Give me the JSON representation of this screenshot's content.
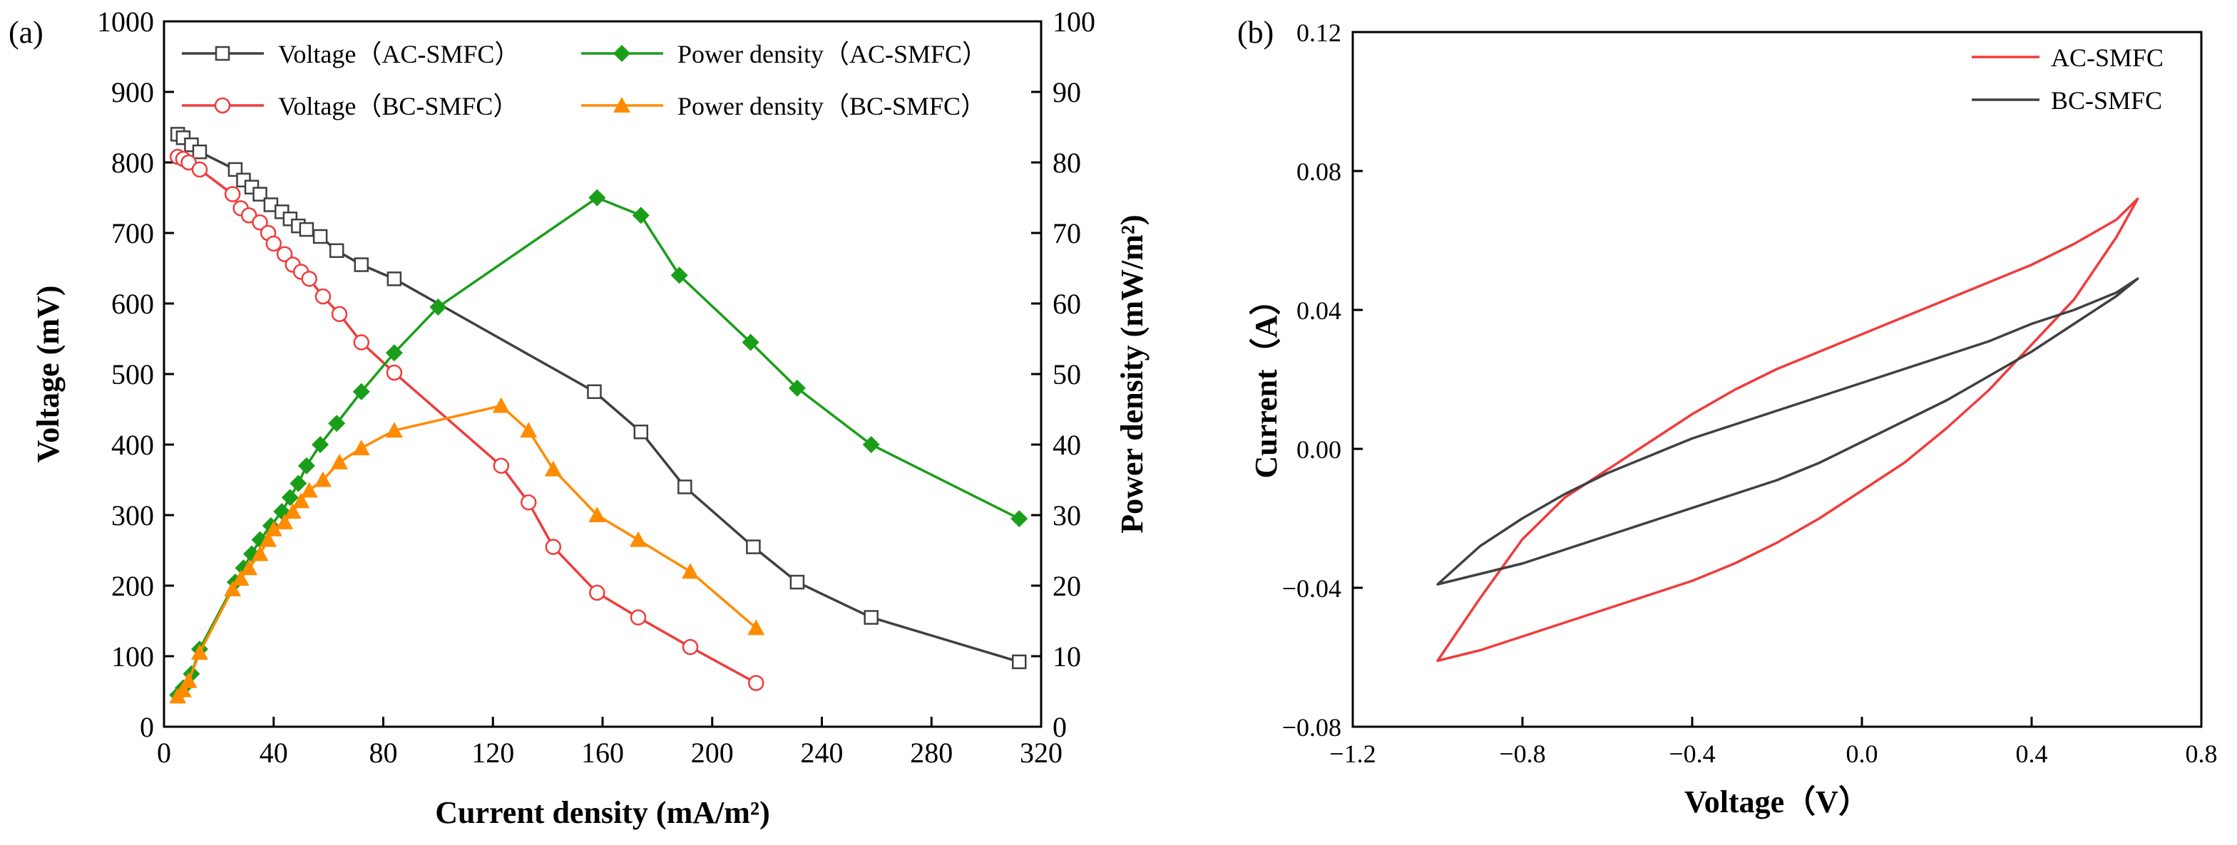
{
  "panel_labels": {
    "a": "(a)",
    "b": "(b)"
  },
  "chart_data": [
    {
      "type": "line",
      "panel": "a",
      "xlabel": "Current density (mA/m²)",
      "ylabel": "Voltage (mV)",
      "y2label": "Power density (mW/m²)",
      "xlim": [
        0,
        320
      ],
      "ylim": [
        0,
        1000
      ],
      "y2lim": [
        0,
        100
      ],
      "xticks": [
        "0",
        "40",
        "80",
        "120",
        "160",
        "200",
        "240",
        "280",
        "320"
      ],
      "yticks": [
        "0",
        "100",
        "200",
        "300",
        "400",
        "500",
        "600",
        "700",
        "800",
        "900",
        "1000"
      ],
      "y2ticks": [
        "0",
        "10",
        "20",
        "30",
        "40",
        "50",
        "60",
        "70",
        "80",
        "90",
        "100"
      ],
      "legend_position": "top",
      "series": [
        {
          "name": "Voltage（AC-SMFC）",
          "axis": "left",
          "color": "#404040",
          "marker": "open-square",
          "x": [
            5,
            7,
            10,
            13,
            26,
            29,
            32,
            35,
            39,
            43,
            46,
            49,
            52,
            57,
            63,
            72,
            84,
            157,
            174,
            190,
            215,
            231,
            258,
            312
          ],
          "y": [
            840,
            835,
            825,
            815,
            790,
            775,
            765,
            755,
            740,
            730,
            720,
            710,
            705,
            695,
            675,
            655,
            635,
            475,
            418,
            340,
            255,
            205,
            155,
            92
          ]
        },
        {
          "name": "Voltage（BC-SMFC）",
          "axis": "left",
          "color": "#f03c3c",
          "marker": "open-circle",
          "x": [
            5,
            7,
            9,
            13,
            25,
            28,
            31,
            35,
            38,
            40,
            44,
            47,
            50,
            53,
            58,
            64,
            72,
            84,
            123,
            133,
            142,
            158,
            173,
            192,
            216
          ],
          "y": [
            808,
            805,
            800,
            790,
            755,
            735,
            725,
            715,
            700,
            685,
            670,
            655,
            645,
            635,
            610,
            585,
            545,
            502,
            370,
            318,
            255,
            190,
            155,
            113,
            62
          ]
        },
        {
          "name": "Power density（AC-SMFC）",
          "axis": "right",
          "color": "#1a9e1a",
          "marker": "filled-diamond",
          "x": [
            5,
            7,
            10,
            13,
            26,
            29,
            32,
            35,
            39,
            43,
            46,
            49,
            52,
            57,
            63,
            72,
            84,
            100,
            158,
            174,
            188,
            214,
            231,
            258,
            312
          ],
          "y": [
            4.5,
            5.5,
            7.5,
            11,
            20.5,
            22.5,
            24.5,
            26.5,
            28.5,
            30.5,
            32.5,
            34.5,
            37,
            40,
            43,
            47.5,
            53,
            59.5,
            75,
            72.5,
            64,
            54.5,
            48,
            40,
            29.5
          ]
        },
        {
          "name": "Power density（BC-SMFC）",
          "axis": "right",
          "color": "#ff8c00",
          "marker": "filled-triangle",
          "x": [
            5,
            7,
            9,
            13,
            25,
            28,
            31,
            35,
            38,
            40,
            44,
            47,
            50,
            53,
            58,
            64,
            72,
            84,
            123,
            133,
            142,
            158,
            173,
            192,
            216
          ],
          "y": [
            4.3,
            5.2,
            6.5,
            10.5,
            19.5,
            21,
            22.5,
            24.5,
            26.5,
            28,
            29,
            30.5,
            32,
            33.5,
            35,
            37.5,
            39.5,
            42,
            45.5,
            42,
            36.5,
            30,
            26.5,
            22,
            14
          ]
        }
      ]
    },
    {
      "type": "line",
      "panel": "b",
      "xlabel": "Voltage（V）",
      "ylabel": "Current（A）",
      "xlim": [
        -1.2,
        0.8
      ],
      "ylim": [
        -0.08,
        0.12
      ],
      "xticks": [
        "−1.2",
        "−0.8",
        "−0.4",
        "0.0",
        "0.4",
        "0.8"
      ],
      "yticks": [
        "−0.08",
        "−0.04",
        "0.00",
        "0.04",
        "0.08",
        "0.12"
      ],
      "legend_position": "top-right",
      "series": [
        {
          "name": "AC-SMFC",
          "color": "#f03c3c",
          "x": [
            -1.0,
            -0.95,
            -0.9,
            -0.8,
            -0.7,
            -0.6,
            -0.5,
            -0.4,
            -0.3,
            -0.2,
            -0.1,
            0.0,
            0.1,
            0.2,
            0.3,
            0.4,
            0.5,
            0.6,
            0.65,
            0.6,
            0.5,
            0.4,
            0.3,
            0.2,
            0.1,
            0.0,
            -0.1,
            -0.2,
            -0.3,
            -0.4,
            -0.5,
            -0.6,
            -0.7,
            -0.8,
            -0.9,
            -1.0
          ],
          "y": [
            -0.061,
            -0.052,
            -0.043,
            -0.026,
            -0.014,
            -0.006,
            0.002,
            0.01,
            0.017,
            0.023,
            0.028,
            0.033,
            0.038,
            0.043,
            0.048,
            0.053,
            0.059,
            0.066,
            0.072,
            0.061,
            0.043,
            0.03,
            0.017,
            0.006,
            -0.004,
            -0.012,
            -0.02,
            -0.027,
            -0.033,
            -0.038,
            -0.042,
            -0.046,
            -0.05,
            -0.054,
            -0.058,
            -0.061
          ]
        },
        {
          "name": "BC-SMFC",
          "color": "#404040",
          "x": [
            -1.0,
            -0.9,
            -0.8,
            -0.7,
            -0.6,
            -0.5,
            -0.4,
            -0.3,
            -0.2,
            -0.1,
            0.0,
            0.1,
            0.2,
            0.3,
            0.4,
            0.5,
            0.6,
            0.65,
            0.6,
            0.5,
            0.4,
            0.3,
            0.2,
            0.1,
            0.0,
            -0.1,
            -0.2,
            -0.3,
            -0.4,
            -0.5,
            -0.6,
            -0.7,
            -0.8,
            -0.9,
            -1.0
          ],
          "y": [
            -0.039,
            -0.028,
            -0.02,
            -0.013,
            -0.007,
            -0.002,
            0.003,
            0.007,
            0.011,
            0.015,
            0.019,
            0.023,
            0.027,
            0.031,
            0.036,
            0.04,
            0.045,
            0.049,
            0.044,
            0.036,
            0.028,
            0.021,
            0.014,
            0.008,
            0.002,
            -0.004,
            -0.009,
            -0.013,
            -0.017,
            -0.021,
            -0.025,
            -0.029,
            -0.033,
            -0.036,
            -0.039
          ]
        }
      ]
    }
  ]
}
